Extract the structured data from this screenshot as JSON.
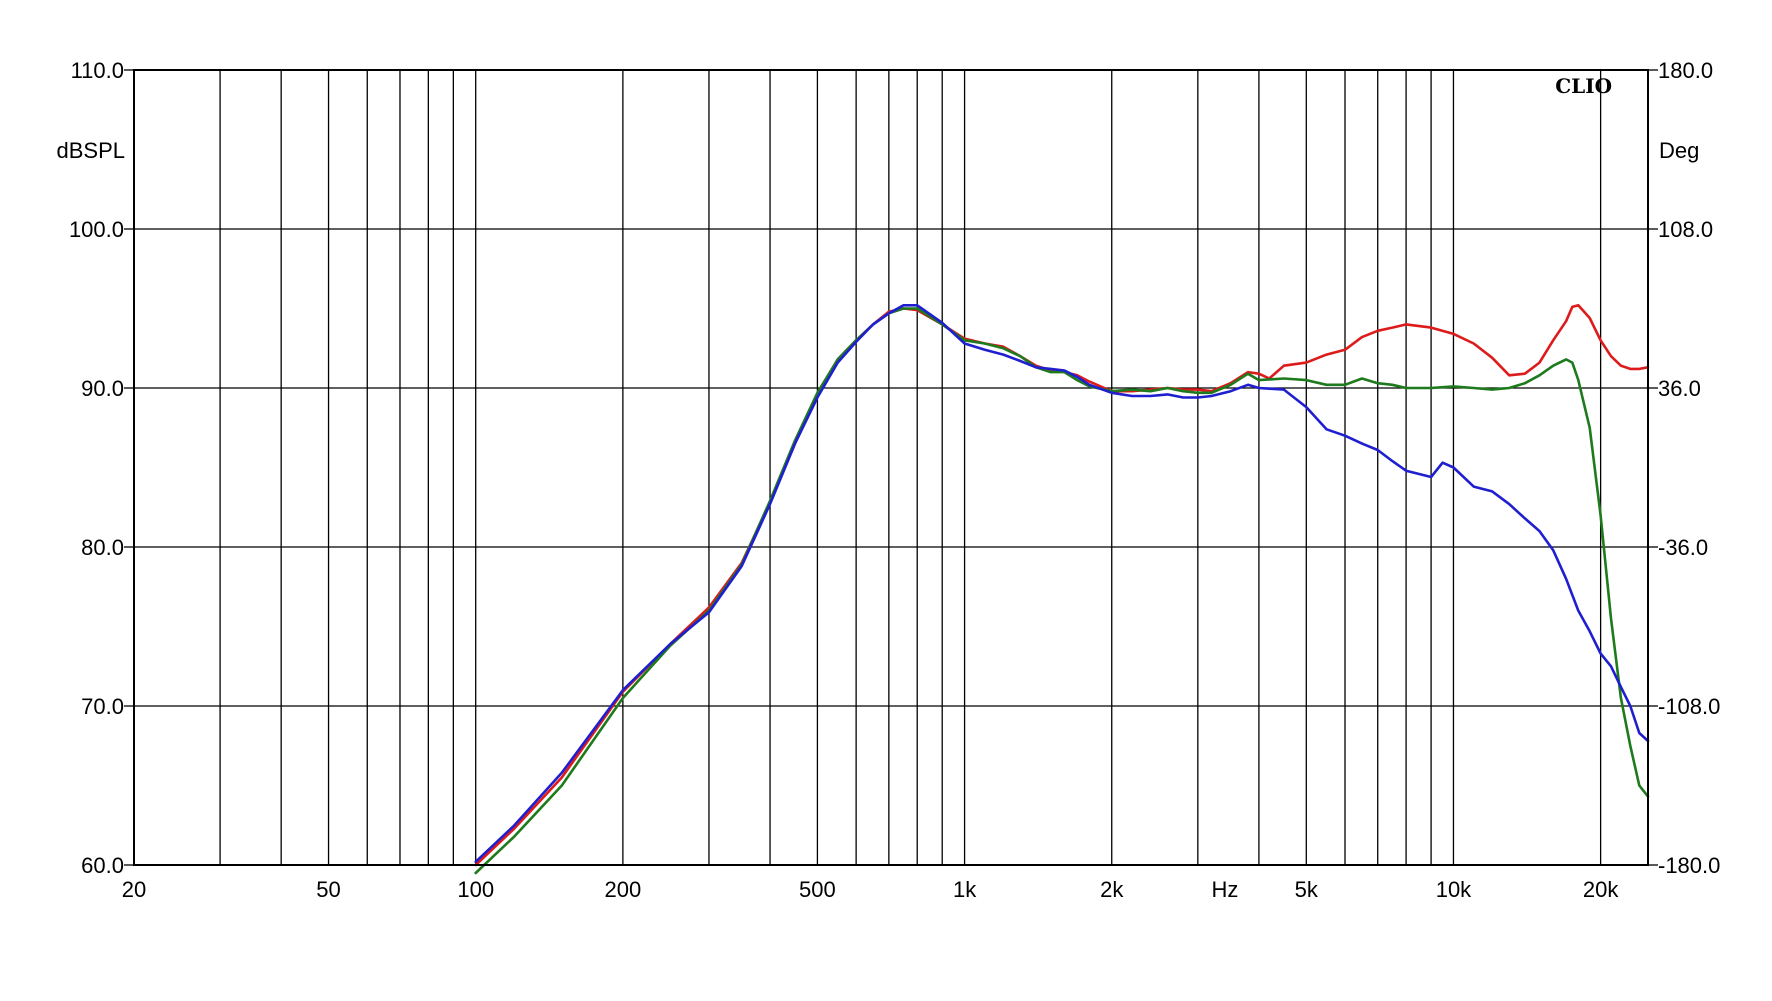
{
  "chart_data": {
    "type": "line",
    "watermark": "CLIO",
    "left_axis": {
      "unit_label": "dBSPL",
      "range": [
        60,
        110
      ],
      "ticks": [
        {
          "value": 60,
          "label": "60.0"
        },
        {
          "value": 70,
          "label": "70.0"
        },
        {
          "value": 80,
          "label": "80.0"
        },
        {
          "value": 90,
          "label": "90.0"
        },
        {
          "value": 100,
          "label": "100.0"
        },
        {
          "value": 110,
          "label": "110.0"
        }
      ]
    },
    "right_axis": {
      "unit_label": "Deg",
      "range": [
        -180,
        180
      ],
      "ticks": [
        {
          "value": -180,
          "label": "-180.0"
        },
        {
          "value": -108,
          "label": "-108.0"
        },
        {
          "value": -36,
          "label": "-36.0"
        },
        {
          "value": 36,
          "label": "36.0"
        },
        {
          "value": 108,
          "label": "108.0"
        },
        {
          "value": 180,
          "label": "180.0"
        }
      ]
    },
    "x_axis": {
      "scale": "log",
      "unit_label": "Hz",
      "range": [
        20,
        25000
      ],
      "tick_labels": [
        {
          "value": 20,
          "label": "20"
        },
        {
          "value": 50,
          "label": "50"
        },
        {
          "value": 100,
          "label": "100"
        },
        {
          "value": 200,
          "label": "200"
        },
        {
          "value": 500,
          "label": "500"
        },
        {
          "value": 1000,
          "label": "1k"
        },
        {
          "value": 2000,
          "label": "2k"
        },
        {
          "value": 5000,
          "label": "5k"
        },
        {
          "value": 10000,
          "label": "10k"
        },
        {
          "value": 20000,
          "label": "20k"
        }
      ],
      "gridlines": [
        20,
        30,
        40,
        50,
        60,
        70,
        80,
        90,
        100,
        200,
        300,
        400,
        500,
        600,
        700,
        800,
        900,
        1000,
        2000,
        3000,
        4000,
        5000,
        6000,
        7000,
        8000,
        9000,
        10000,
        20000
      ]
    },
    "grid": true,
    "series": [
      {
        "color": "#dd1b1b",
        "points": [
          [
            100,
            60
          ],
          [
            120,
            62.3
          ],
          [
            150,
            65.5
          ],
          [
            200,
            70.9
          ],
          [
            250,
            73.9
          ],
          [
            300,
            76.2
          ],
          [
            350,
            79.0
          ],
          [
            400,
            82.8
          ],
          [
            450,
            86.5
          ],
          [
            500,
            89.6
          ],
          [
            550,
            91.8
          ],
          [
            600,
            93.0
          ],
          [
            650,
            94.0
          ],
          [
            700,
            94.8
          ],
          [
            750,
            95.0
          ],
          [
            800,
            94.9
          ],
          [
            900,
            94.0
          ],
          [
            1000,
            93.1
          ],
          [
            1100,
            92.8
          ],
          [
            1200,
            92.6
          ],
          [
            1300,
            92.0
          ],
          [
            1400,
            91.4
          ],
          [
            1500,
            91.1
          ],
          [
            1600,
            91.0
          ],
          [
            1700,
            90.8
          ],
          [
            1800,
            90.4
          ],
          [
            2000,
            89.8
          ],
          [
            2200,
            89.8
          ],
          [
            2400,
            89.9
          ],
          [
            2600,
            90.0
          ],
          [
            2800,
            89.9
          ],
          [
            3000,
            89.9
          ],
          [
            3200,
            89.8
          ],
          [
            3500,
            90.3
          ],
          [
            3800,
            91.0
          ],
          [
            4000,
            90.9
          ],
          [
            4200,
            90.6
          ],
          [
            4500,
            91.4
          ],
          [
            5000,
            91.6
          ],
          [
            5500,
            92.1
          ],
          [
            6000,
            92.4
          ],
          [
            6500,
            93.2
          ],
          [
            7000,
            93.6
          ],
          [
            7500,
            93.8
          ],
          [
            8000,
            94.0
          ],
          [
            9000,
            93.8
          ],
          [
            10000,
            93.4
          ],
          [
            11000,
            92.8
          ],
          [
            12000,
            91.9
          ],
          [
            13000,
            90.8
          ],
          [
            14000,
            90.9
          ],
          [
            15000,
            91.6
          ],
          [
            16000,
            93.0
          ],
          [
            17000,
            94.2
          ],
          [
            17500,
            95.1
          ],
          [
            18000,
            95.2
          ],
          [
            19000,
            94.4
          ],
          [
            20000,
            93.0
          ],
          [
            21000,
            92.0
          ],
          [
            22000,
            91.4
          ],
          [
            23000,
            91.2
          ],
          [
            24000,
            91.2
          ],
          [
            25000,
            91.3
          ]
        ]
      },
      {
        "color": "#1d7a1d",
        "points": [
          [
            100,
            59.5
          ],
          [
            120,
            61.8
          ],
          [
            150,
            65.0
          ],
          [
            200,
            70.5
          ],
          [
            250,
            73.8
          ],
          [
            300,
            76.0
          ],
          [
            350,
            78.9
          ],
          [
            400,
            82.9
          ],
          [
            450,
            86.7
          ],
          [
            500,
            89.7
          ],
          [
            550,
            91.8
          ],
          [
            600,
            93.0
          ],
          [
            650,
            94.0
          ],
          [
            700,
            94.7
          ],
          [
            750,
            95.0
          ],
          [
            800,
            95.0
          ],
          [
            900,
            94.0
          ],
          [
            1000,
            93.0
          ],
          [
            1100,
            92.8
          ],
          [
            1200,
            92.5
          ],
          [
            1300,
            92.0
          ],
          [
            1400,
            91.3
          ],
          [
            1500,
            91.0
          ],
          [
            1600,
            91.0
          ],
          [
            1700,
            90.5
          ],
          [
            1800,
            90.1
          ],
          [
            2000,
            89.8
          ],
          [
            2200,
            89.9
          ],
          [
            2400,
            89.8
          ],
          [
            2600,
            90.0
          ],
          [
            2800,
            89.8
          ],
          [
            3000,
            89.7
          ],
          [
            3200,
            89.7
          ],
          [
            3500,
            90.2
          ],
          [
            3800,
            90.9
          ],
          [
            4000,
            90.5
          ],
          [
            4500,
            90.6
          ],
          [
            5000,
            90.5
          ],
          [
            5500,
            90.2
          ],
          [
            6000,
            90.2
          ],
          [
            6500,
            90.6
          ],
          [
            7000,
            90.3
          ],
          [
            7500,
            90.2
          ],
          [
            8000,
            90.0
          ],
          [
            9000,
            90.0
          ],
          [
            10000,
            90.1
          ],
          [
            11000,
            90.0
          ],
          [
            12000,
            89.9
          ],
          [
            13000,
            90.0
          ],
          [
            14000,
            90.3
          ],
          [
            15000,
            90.8
          ],
          [
            16000,
            91.4
          ],
          [
            17000,
            91.8
          ],
          [
            17500,
            91.6
          ],
          [
            18000,
            90.5
          ],
          [
            19000,
            87.5
          ],
          [
            20000,
            82.0
          ],
          [
            21000,
            75.5
          ],
          [
            22000,
            70.5
          ],
          [
            23000,
            67.5
          ],
          [
            24000,
            65.0
          ],
          [
            25000,
            64.3
          ]
        ]
      },
      {
        "color": "#1f1fd0",
        "points": [
          [
            100,
            60.2
          ],
          [
            120,
            62.5
          ],
          [
            150,
            65.8
          ],
          [
            200,
            71.0
          ],
          [
            250,
            73.9
          ],
          [
            300,
            75.9
          ],
          [
            350,
            78.8
          ],
          [
            400,
            82.7
          ],
          [
            450,
            86.5
          ],
          [
            500,
            89.4
          ],
          [
            550,
            91.6
          ],
          [
            600,
            92.9
          ],
          [
            650,
            94.0
          ],
          [
            700,
            94.7
          ],
          [
            750,
            95.2
          ],
          [
            800,
            95.2
          ],
          [
            900,
            94.1
          ],
          [
            1000,
            92.8
          ],
          [
            1100,
            92.4
          ],
          [
            1200,
            92.1
          ],
          [
            1300,
            91.7
          ],
          [
            1400,
            91.3
          ],
          [
            1500,
            91.2
          ],
          [
            1600,
            91.1
          ],
          [
            1700,
            90.7
          ],
          [
            1800,
            90.2
          ],
          [
            2000,
            89.7
          ],
          [
            2200,
            89.5
          ],
          [
            2400,
            89.5
          ],
          [
            2600,
            89.6
          ],
          [
            2800,
            89.4
          ],
          [
            3000,
            89.4
          ],
          [
            3200,
            89.5
          ],
          [
            3500,
            89.8
          ],
          [
            3800,
            90.2
          ],
          [
            4000,
            90.0
          ],
          [
            4500,
            89.9
          ],
          [
            5000,
            88.8
          ],
          [
            5500,
            87.4
          ],
          [
            6000,
            87.0
          ],
          [
            6500,
            86.5
          ],
          [
            7000,
            86.1
          ],
          [
            7500,
            85.4
          ],
          [
            8000,
            84.8
          ],
          [
            9000,
            84.4
          ],
          [
            9500,
            85.3
          ],
          [
            10000,
            85.0
          ],
          [
            11000,
            83.8
          ],
          [
            12000,
            83.5
          ],
          [
            13000,
            82.7
          ],
          [
            14000,
            81.8
          ],
          [
            15000,
            81.0
          ],
          [
            16000,
            79.8
          ],
          [
            17000,
            78.0
          ],
          [
            18000,
            76.0
          ],
          [
            19000,
            74.7
          ],
          [
            20000,
            73.3
          ],
          [
            21000,
            72.5
          ],
          [
            22000,
            71.2
          ],
          [
            23000,
            70.0
          ],
          [
            24000,
            68.3
          ],
          [
            25000,
            67.8
          ]
        ]
      }
    ]
  }
}
